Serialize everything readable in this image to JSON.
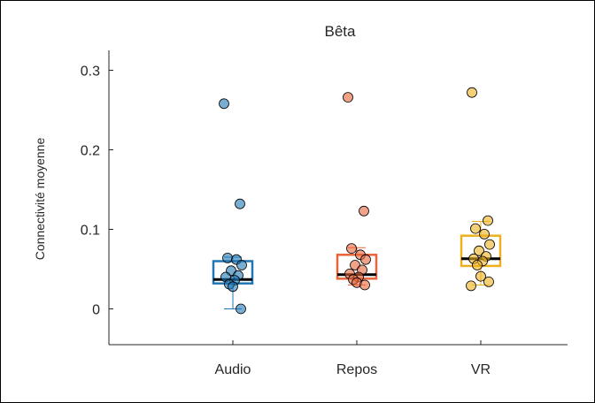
{
  "caption": "",
  "chart_data": {
    "type": "box",
    "title": "Bêta",
    "xlabel": "",
    "ylabel": "Connectivité moyenne",
    "ylim": [
      -0.045,
      0.325
    ],
    "yticks": [
      0,
      0.1,
      0.2,
      0.3
    ],
    "ytick_labels": [
      "0",
      "0.1",
      "0.2",
      "0.3"
    ],
    "grid": false,
    "categories": [
      "Audio",
      "Repos",
      "VR"
    ],
    "colors": {
      "Audio": "#1f77b4",
      "Repos": "#e8653b",
      "VR": "#edb120"
    },
    "boxes": [
      {
        "category": "Audio",
        "q1": 0.032,
        "median": 0.037,
        "q3": 0.06,
        "whisker_low": 0.0,
        "whisker_high": 0.065,
        "points": [
          0.258,
          0.132,
          0.064,
          0.062,
          0.055,
          0.048,
          0.042,
          0.04,
          0.036,
          0.031,
          0.028,
          0.0
        ]
      },
      {
        "category": "Repos",
        "q1": 0.038,
        "median": 0.043,
        "q3": 0.068,
        "whisker_low": 0.03,
        "whisker_high": 0.077,
        "points": [
          0.266,
          0.123,
          0.076,
          0.068,
          0.062,
          0.055,
          0.049,
          0.044,
          0.04,
          0.037,
          0.033,
          0.03
        ]
      },
      {
        "category": "VR",
        "q1": 0.054,
        "median": 0.063,
        "q3": 0.092,
        "whisker_low": 0.03,
        "whisker_high": 0.11,
        "points": [
          0.272,
          0.111,
          0.101,
          0.094,
          0.081,
          0.073,
          0.066,
          0.063,
          0.06,
          0.055,
          0.041,
          0.034,
          0.029
        ]
      }
    ]
  }
}
